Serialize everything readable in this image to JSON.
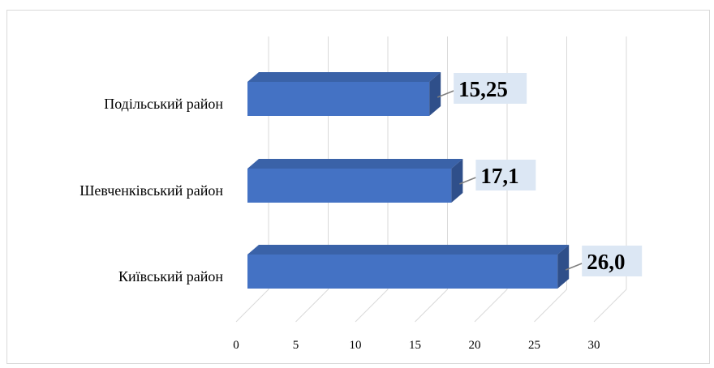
{
  "chart_data": {
    "type": "bar",
    "orientation": "horizontal",
    "style": "3d-clustered",
    "categories": [
      "Подільський район",
      "Шевченківський район",
      "Київський район"
    ],
    "values": [
      15.25,
      17.1,
      26.0
    ],
    "data_labels": [
      "15,25",
      "17,1",
      "26,0"
    ],
    "x_ticks": [
      "0",
      "5",
      "10",
      "15",
      "20",
      "25",
      "30"
    ],
    "xlim": [
      0,
      30
    ],
    "grid": true,
    "legend": "none",
    "colors": {
      "bar_front": "#4472C4",
      "bar_top": "#3A62A8",
      "bar_side": "#2F4F8A",
      "label_fill": "#DCE7F4",
      "grid": "#D9D9D9",
      "frame": "#D9D9D9"
    }
  }
}
